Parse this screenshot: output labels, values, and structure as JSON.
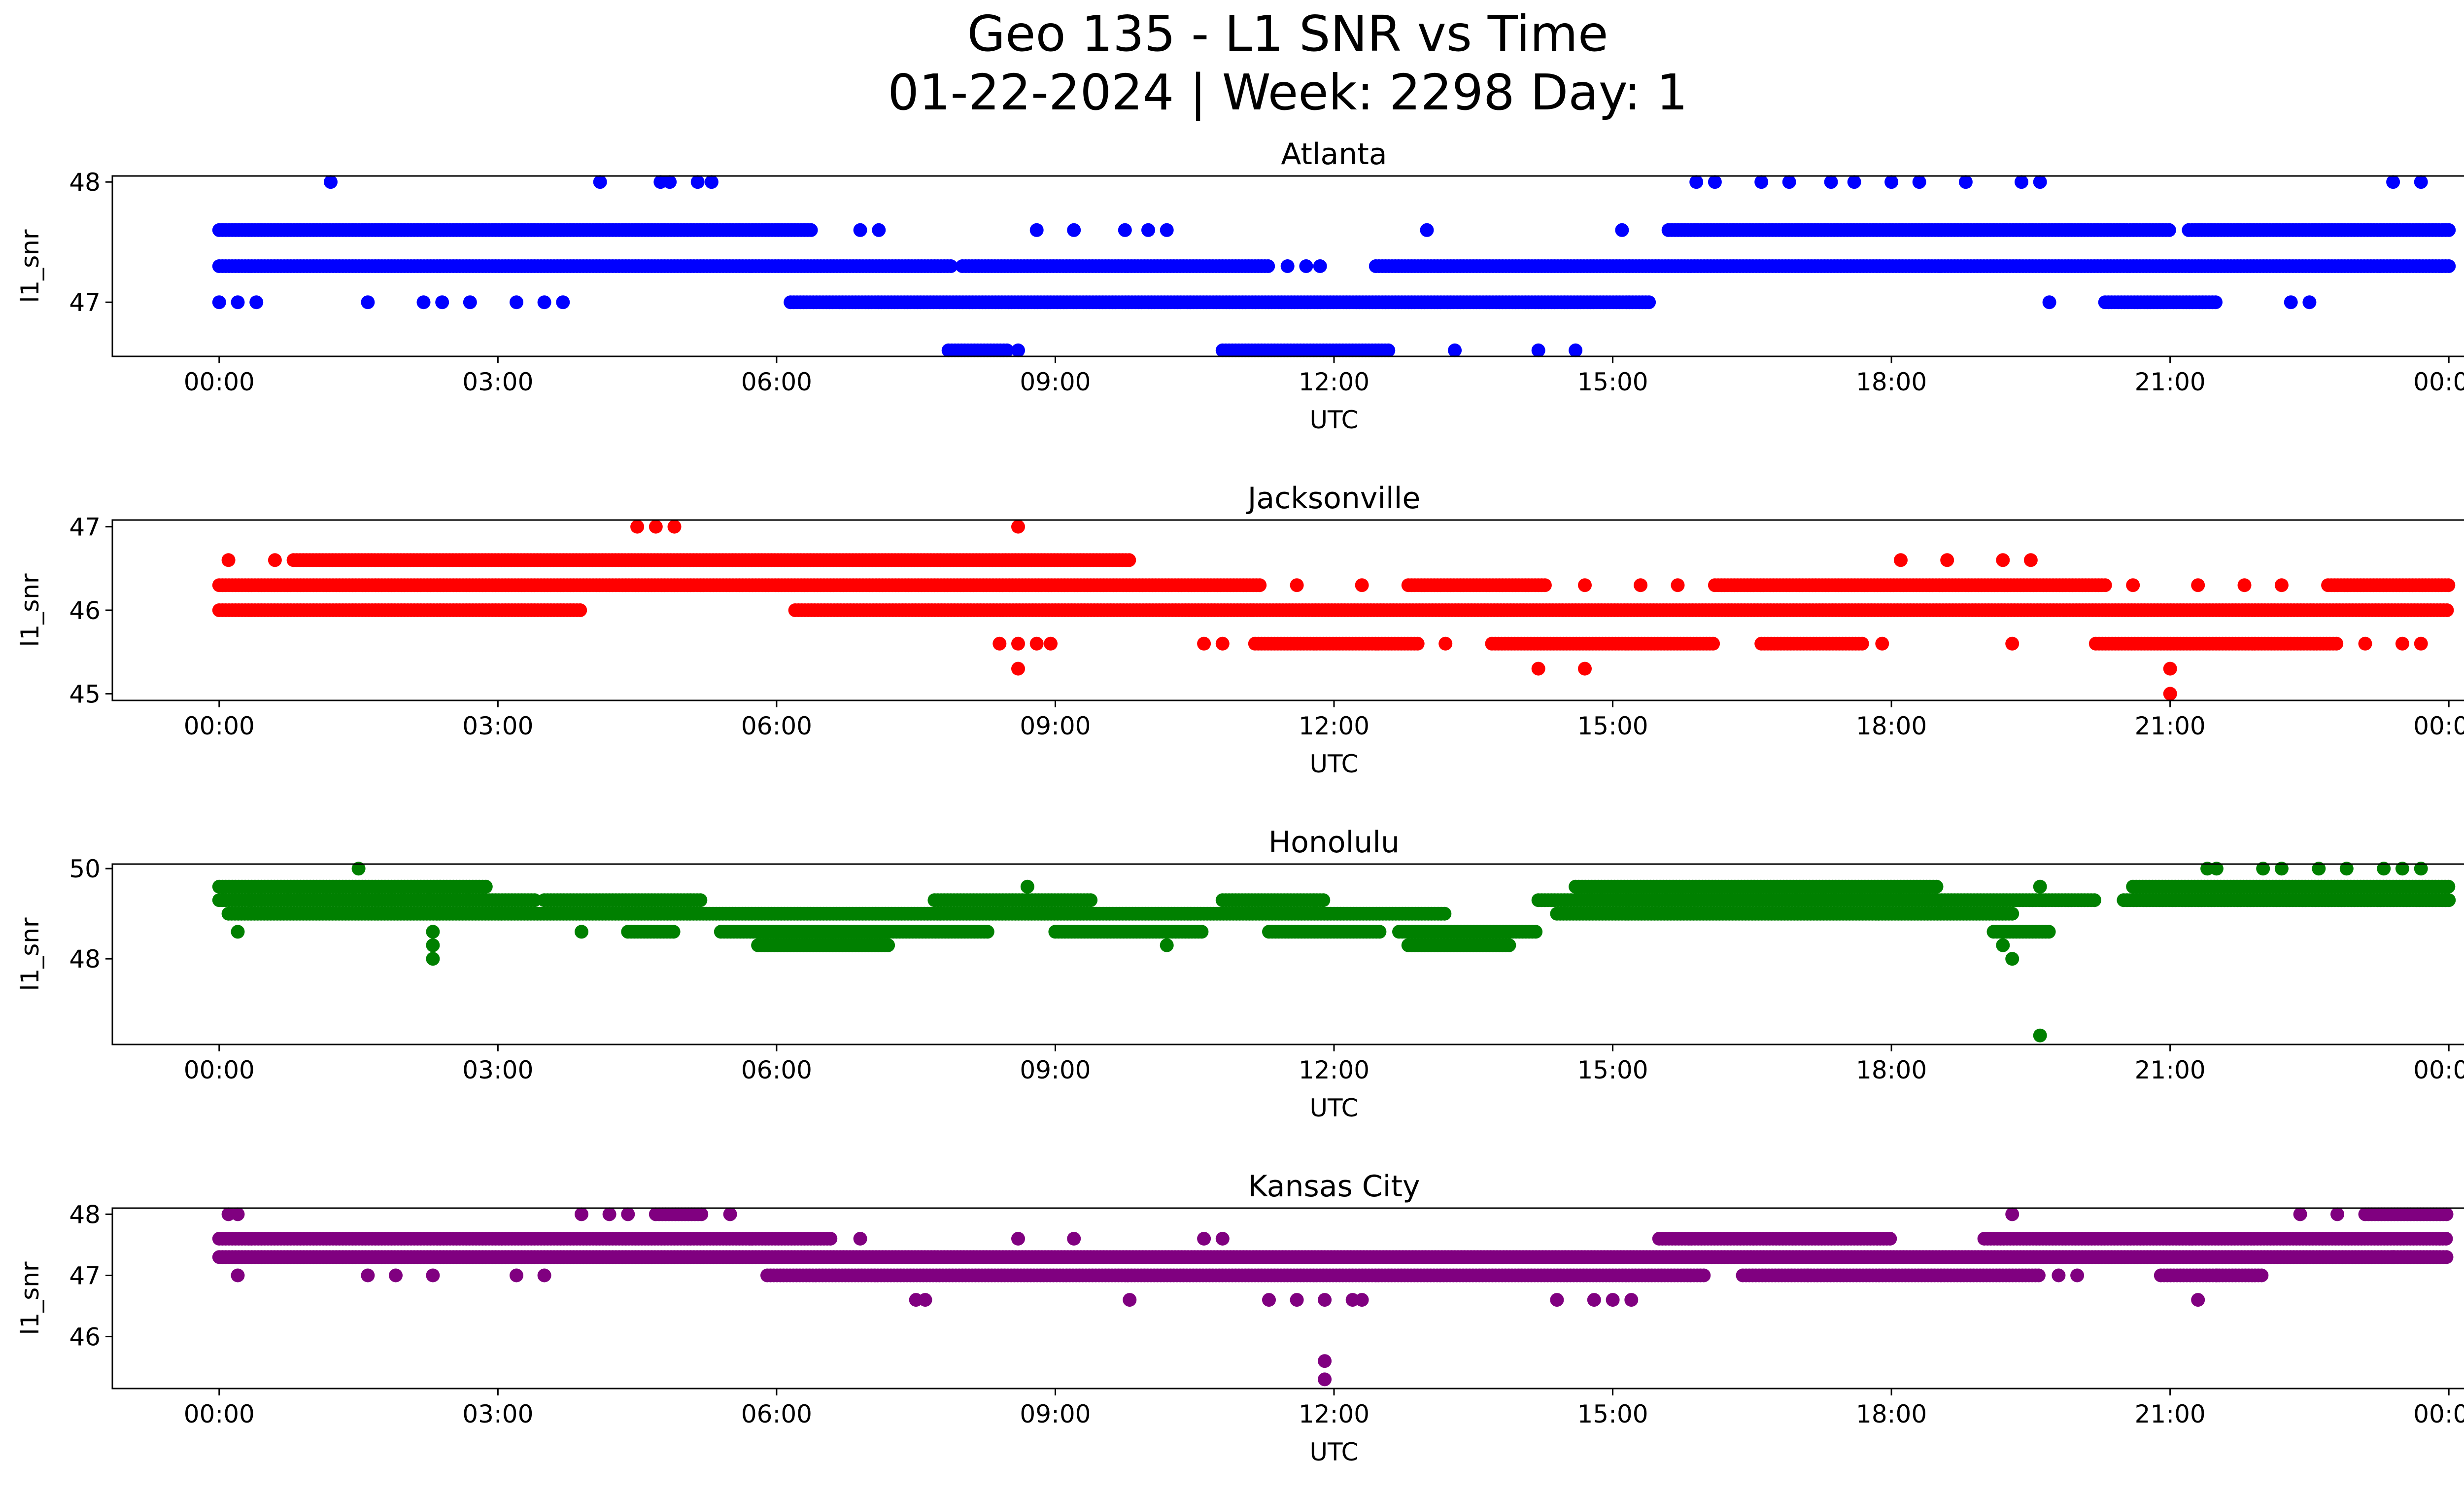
{
  "figure": {
    "title_line1": "Geo 135 - L1 SNR vs Time",
    "title_line2": "01-22-2024 | Week: 2298 Day: 1"
  },
  "chart_data": [
    {
      "type": "scatter",
      "title": "Atlanta",
      "xlabel": "UTC",
      "ylabel": "l1_snr",
      "color": "#0000ff",
      "xlim": [
        -1.15,
        25.15
      ],
      "ylim": [
        46.55,
        48.05
      ],
      "xticks": [
        0,
        3,
        6,
        9,
        12,
        15,
        18,
        21,
        24
      ],
      "xtick_labels": [
        "00:00",
        "03:00",
        "06:00",
        "09:00",
        "12:00",
        "15:00",
        "18:00",
        "21:00",
        "00:00"
      ],
      "yticks": [
        47,
        48
      ],
      "ytick_labels": [
        "47",
        "48"
      ],
      "bands": [
        {
          "y": 47.3,
          "ranges": [
            [
              0,
              7.9
            ],
            [
              8.0,
              11.3
            ],
            [
              12.45,
              24
            ]
          ]
        },
        {
          "y": 47.6,
          "ranges": [
            [
              0,
              6.4
            ],
            [
              15.6,
              21.0
            ],
            [
              21.2,
              24
            ]
          ]
        },
        {
          "y": 47.0,
          "ranges": [
            [
              6.15,
              15.4
            ],
            [
              20.3,
              21.5
            ]
          ]
        },
        {
          "y": 46.6,
          "ranges": [
            [
              7.85,
              8.5
            ],
            [
              10.8,
              12.6
            ]
          ]
        }
      ],
      "points": [
        [
          1.2,
          48.0
        ],
        [
          4.1,
          48.0
        ],
        [
          4.75,
          48.0
        ],
        [
          4.85,
          48.0
        ],
        [
          5.15,
          48.0
        ],
        [
          5.3,
          48.0
        ],
        [
          15.9,
          48.0
        ],
        [
          16.1,
          48.0
        ],
        [
          16.6,
          48.0
        ],
        [
          16.9,
          48.0
        ],
        [
          17.35,
          48.0
        ],
        [
          17.6,
          48.0
        ],
        [
          18.0,
          48.0
        ],
        [
          18.3,
          48.0
        ],
        [
          18.8,
          48.0
        ],
        [
          19.4,
          48.0
        ],
        [
          19.6,
          48.0
        ],
        [
          23.4,
          48.0
        ],
        [
          23.7,
          48.0
        ],
        [
          6.9,
          47.6
        ],
        [
          7.1,
          47.6
        ],
        [
          8.8,
          47.6
        ],
        [
          9.2,
          47.6
        ],
        [
          9.75,
          47.6
        ],
        [
          10.0,
          47.6
        ],
        [
          10.2,
          47.6
        ],
        [
          13.0,
          47.6
        ],
        [
          15.1,
          47.6
        ],
        [
          11.5,
          47.3
        ],
        [
          11.7,
          47.3
        ],
        [
          11.85,
          47.3
        ],
        [
          0.0,
          47.0
        ],
        [
          0.2,
          47.0
        ],
        [
          0.4,
          47.0
        ],
        [
          1.6,
          47.0
        ],
        [
          2.2,
          47.0
        ],
        [
          2.4,
          47.0
        ],
        [
          2.7,
          47.0
        ],
        [
          3.2,
          47.0
        ],
        [
          3.5,
          47.0
        ],
        [
          3.7,
          47.0
        ],
        [
          19.7,
          47.0
        ],
        [
          22.3,
          47.0
        ],
        [
          22.5,
          47.0
        ],
        [
          8.6,
          46.6
        ],
        [
          13.3,
          46.6
        ],
        [
          14.2,
          46.6
        ],
        [
          14.6,
          46.6
        ]
      ]
    },
    {
      "type": "scatter",
      "title": "Jacksonville",
      "xlabel": "UTC",
      "ylabel": "l1_snr",
      "color": "#ff0000",
      "xlim": [
        -1.15,
        25.15
      ],
      "ylim": [
        44.92,
        47.08
      ],
      "xticks": [
        0,
        3,
        6,
        9,
        12,
        15,
        18,
        21,
        24
      ],
      "xtick_labels": [
        "00:00",
        "03:00",
        "06:00",
        "09:00",
        "12:00",
        "15:00",
        "18:00",
        "21:00",
        "00:00"
      ],
      "yticks": [
        45,
        46,
        47
      ],
      "ytick_labels": [
        "45",
        "46",
        "47"
      ],
      "bands": [
        {
          "y": 46.3,
          "ranges": [
            [
              0,
              11.2
            ],
            [
              12.8,
              14.3
            ],
            [
              16.1,
              20.3
            ],
            [
              22.7,
              24
            ]
          ]
        },
        {
          "y": 46.0,
          "ranges": [
            [
              0,
              3.9
            ],
            [
              6.2,
              24
            ]
          ]
        },
        {
          "y": 46.6,
          "ranges": [
            [
              0.8,
              9.8
            ]
          ]
        },
        {
          "y": 45.6,
          "ranges": [
            [
              11.15,
              12.9
            ],
            [
              13.7,
              16.1
            ],
            [
              16.6,
              17.7
            ],
            [
              20.2,
              22.8
            ]
          ]
        }
      ],
      "points": [
        [
          4.5,
          47.0
        ],
        [
          4.7,
          47.0
        ],
        [
          4.9,
          47.0
        ],
        [
          8.6,
          47.0
        ],
        [
          0.1,
          46.6
        ],
        [
          0.6,
          46.6
        ],
        [
          18.1,
          46.6
        ],
        [
          18.6,
          46.6
        ],
        [
          19.2,
          46.6
        ],
        [
          19.5,
          46.6
        ],
        [
          11.6,
          46.3
        ],
        [
          12.3,
          46.3
        ],
        [
          14.7,
          46.3
        ],
        [
          15.3,
          46.3
        ],
        [
          15.7,
          46.3
        ],
        [
          20.6,
          46.3
        ],
        [
          21.3,
          46.3
        ],
        [
          21.8,
          46.3
        ],
        [
          22.2,
          46.3
        ],
        [
          8.4,
          45.6
        ],
        [
          8.6,
          45.6
        ],
        [
          8.8,
          45.6
        ],
        [
          8.95,
          45.6
        ],
        [
          10.6,
          45.6
        ],
        [
          10.8,
          45.6
        ],
        [
          13.2,
          45.6
        ],
        [
          17.9,
          45.6
        ],
        [
          19.3,
          45.6
        ],
        [
          23.1,
          45.6
        ],
        [
          23.5,
          45.6
        ],
        [
          23.7,
          45.6
        ],
        [
          8.6,
          45.3
        ],
        [
          14.2,
          45.3
        ],
        [
          14.7,
          45.3
        ],
        [
          21.0,
          45.3
        ],
        [
          21.0,
          45.0
        ]
      ]
    },
    {
      "type": "scatter",
      "title": "Honolulu",
      "xlabel": "UTC",
      "ylabel": "l1_snr",
      "color": "#008000",
      "xlim": [
        -1.15,
        25.15
      ],
      "ylim": [
        46.1,
        50.1
      ],
      "xticks": [
        0,
        3,
        6,
        9,
        12,
        15,
        18,
        21,
        24
      ],
      "xtick_labels": [
        "00:00",
        "03:00",
        "06:00",
        "09:00",
        "12:00",
        "15:00",
        "18:00",
        "21:00",
        "00:00"
      ],
      "yticks": [
        48,
        50
      ],
      "ytick_labels": [
        "48",
        "50"
      ],
      "bands": [
        {
          "y": 49.6,
          "ranges": [
            [
              0,
              2.9
            ],
            [
              14.6,
              18.5
            ],
            [
              20.6,
              24
            ]
          ]
        },
        {
          "y": 49.3,
          "ranges": [
            [
              0,
              3.4
            ],
            [
              3.5,
              5.2
            ],
            [
              7.7,
              9.4
            ],
            [
              10.8,
              11.9
            ],
            [
              14.2,
              20.2
            ],
            [
              20.5,
              24
            ]
          ]
        },
        {
          "y": 49.0,
          "ranges": [
            [
              0.1,
              13.2
            ],
            [
              14.4,
              19.3
            ]
          ]
        },
        {
          "y": 48.6,
          "ranges": [
            [
              4.4,
              4.9
            ],
            [
              5.4,
              8.3
            ],
            [
              9.0,
              10.6
            ],
            [
              11.3,
              12.5
            ],
            [
              12.7,
              14.2
            ],
            [
              19.1,
              19.7
            ]
          ]
        },
        {
          "y": 48.3,
          "ranges": [
            [
              5.8,
              7.2
            ],
            [
              12.8,
              13.9
            ]
          ]
        }
      ],
      "points": [
        [
          1.5,
          50.0
        ],
        [
          21.4,
          50.0
        ],
        [
          21.5,
          50.0
        ],
        [
          22.0,
          50.0
        ],
        [
          22.2,
          50.0
        ],
        [
          22.6,
          50.0
        ],
        [
          22.9,
          50.0
        ],
        [
          23.3,
          50.0
        ],
        [
          23.5,
          50.0
        ],
        [
          23.7,
          50.0
        ],
        [
          8.7,
          49.6
        ],
        [
          19.6,
          49.6
        ],
        [
          0.2,
          48.6
        ],
        [
          2.3,
          48.6
        ],
        [
          3.9,
          48.6
        ],
        [
          10.2,
          48.3
        ],
        [
          19.2,
          48.3
        ],
        [
          2.3,
          48.3
        ],
        [
          2.3,
          48.0
        ],
        [
          19.3,
          48.0
        ],
        [
          19.6,
          46.3
        ]
      ]
    },
    {
      "type": "scatter",
      "title": "Kansas City",
      "xlabel": "UTC",
      "ylabel": "l1_snr",
      "color": "#800080",
      "xlim": [
        -1.15,
        25.15
      ],
      "ylim": [
        45.15,
        48.1
      ],
      "xticks": [
        0,
        3,
        6,
        9,
        12,
        15,
        18,
        21,
        24
      ],
      "xtick_labels": [
        "00:00",
        "03:00",
        "06:00",
        "09:00",
        "12:00",
        "15:00",
        "18:00",
        "21:00",
        "00:00"
      ],
      "yticks": [
        46,
        47,
        48
      ],
      "ytick_labels": [
        "46",
        "47",
        "48"
      ],
      "bands": [
        {
          "y": 47.6,
          "ranges": [
            [
              0,
              6.6
            ],
            [
              15.5,
              18.0
            ],
            [
              19.0,
              24
            ]
          ]
        },
        {
          "y": 47.3,
          "ranges": [
            [
              0,
              24
            ]
          ]
        },
        {
          "y": 47.0,
          "ranges": [
            [
              5.9,
              16.0
            ],
            [
              16.4,
              19.6
            ],
            [
              20.9,
              22.0
            ]
          ]
        },
        {
          "y": 48.0,
          "ranges": [
            [
              4.7,
              5.2
            ],
            [
              23.1,
              24
            ]
          ]
        }
      ],
      "points": [
        [
          0.1,
          48.0
        ],
        [
          0.2,
          48.0
        ],
        [
          3.9,
          48.0
        ],
        [
          4.2,
          48.0
        ],
        [
          4.4,
          48.0
        ],
        [
          5.5,
          48.0
        ],
        [
          19.3,
          48.0
        ],
        [
          22.4,
          48.0
        ],
        [
          22.8,
          48.0
        ],
        [
          6.9,
          47.6
        ],
        [
          8.6,
          47.6
        ],
        [
          9.2,
          47.6
        ],
        [
          10.6,
          47.6
        ],
        [
          10.8,
          47.6
        ],
        [
          23.4,
          47.3
        ],
        [
          0.2,
          47.0
        ],
        [
          1.6,
          47.0
        ],
        [
          1.9,
          47.0
        ],
        [
          2.3,
          47.0
        ],
        [
          3.2,
          47.0
        ],
        [
          3.5,
          47.0
        ],
        [
          17.1,
          47.0
        ],
        [
          19.8,
          47.0
        ],
        [
          20.0,
          47.0
        ],
        [
          21.5,
          47.0
        ],
        [
          7.5,
          46.6
        ],
        [
          7.6,
          46.6
        ],
        [
          9.8,
          46.6
        ],
        [
          11.3,
          46.6
        ],
        [
          11.6,
          46.6
        ],
        [
          11.9,
          46.6
        ],
        [
          12.2,
          46.6
        ],
        [
          12.3,
          46.6
        ],
        [
          14.4,
          46.6
        ],
        [
          14.8,
          46.6
        ],
        [
          15.0,
          46.6
        ],
        [
          15.2,
          46.6
        ],
        [
          21.3,
          46.6
        ],
        [
          11.9,
          45.6
        ],
        [
          11.9,
          45.3
        ]
      ]
    }
  ]
}
